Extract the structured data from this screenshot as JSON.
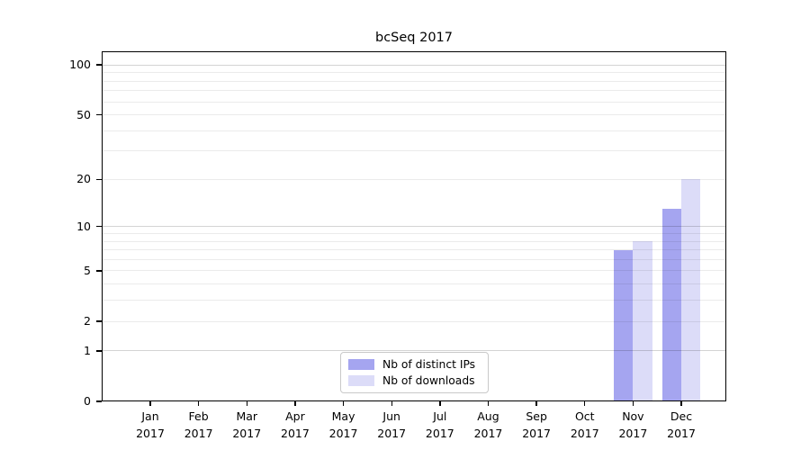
{
  "chart_data": {
    "type": "bar",
    "title": "bcSeq 2017",
    "xlabel": "",
    "ylabel": "",
    "categories": [
      "Jan",
      "Feb",
      "Mar",
      "Apr",
      "May",
      "Jun",
      "Jul",
      "Aug",
      "Sep",
      "Oct",
      "Nov",
      "Dec"
    ],
    "category_year": "2017",
    "series": [
      {
        "name": "Nb of distinct IPs",
        "color": "#a5a5f0",
        "values": [
          0,
          0,
          0,
          0,
          0,
          0,
          0,
          0,
          0,
          0,
          7,
          13
        ]
      },
      {
        "name": "Nb of downloads",
        "color": "#dcdcf8",
        "values": [
          0,
          0,
          0,
          0,
          0,
          0,
          0,
          0,
          0,
          0,
          8,
          20
        ]
      }
    ],
    "yscale": "log1p",
    "ylim": [
      0,
      121
    ],
    "y_ticks": [
      0,
      1,
      2,
      5,
      10,
      20,
      50,
      100
    ],
    "y_major_gridlines": [
      1,
      10,
      100
    ],
    "y_minor_gridlines": [
      2,
      3,
      4,
      5,
      6,
      7,
      8,
      9,
      20,
      30,
      40,
      50,
      60,
      70,
      80,
      90
    ],
    "grid_color_major": "rgba(0,0,0,0.17)",
    "grid_color_minor": "rgba(0,0,0,0.08)",
    "legend_position": "lower center",
    "frame_color": "#000000",
    "background_color": "#ffffff"
  }
}
